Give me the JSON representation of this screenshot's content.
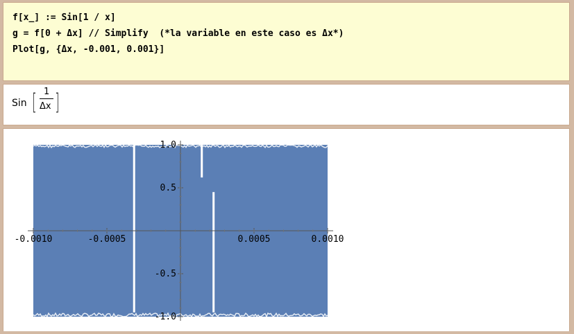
{
  "notebook": {
    "input_lines": [
      "f[x_] := Sin[1 / x]",
      "g = f[0 + Δx] // Simplify  (*la variable en este caso es Δx*)",
      "Plot[g, {Δx, -0.001, 0.001}]"
    ],
    "output": {
      "function": "Sin",
      "open_bracket": "[",
      "close_bracket": "]",
      "numerator": "1",
      "denominator": "Δx"
    }
  },
  "chart_data": {
    "type": "area",
    "title": "",
    "xlabel": "",
    "ylabel": "",
    "xlim": [
      -0.001,
      0.001
    ],
    "ylim": [
      -1.0,
      1.0
    ],
    "x_ticks": [
      "-0.0010",
      "-0.0005",
      "0.0005",
      "0.0010"
    ],
    "y_ticks": [
      "1.0",
      "0.5",
      "-0.5",
      "-1.0"
    ],
    "series": [
      {
        "function": "Sin[1/Δx]",
        "color": "#5b7fb5",
        "fill_range": [
          -1.0,
          1.0
        ],
        "x": [
          -0.001,
          0.001
        ]
      }
    ],
    "gaps": [
      {
        "x": -0.000315,
        "y_top": 1.0,
        "y_bottom": -0.95
      },
      {
        "x": 0.000225,
        "y_top": 0.45,
        "y_bottom": -0.95
      },
      {
        "x": 0.000145,
        "y_top": 1.0,
        "y_bottom": 0.62
      }
    ],
    "grid": false,
    "legend": "none"
  }
}
